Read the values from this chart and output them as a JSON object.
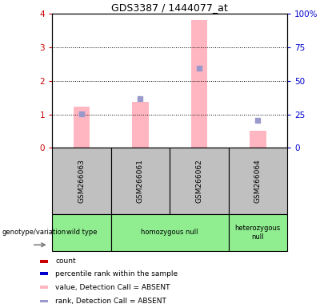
{
  "title": "GDS3387 / 1444077_at",
  "samples": [
    "GSM266063",
    "GSM266061",
    "GSM266062",
    "GSM266064"
  ],
  "pink_bar_values": [
    1.22,
    1.38,
    3.82,
    0.52
  ],
  "blue_dot_values": [
    1.02,
    1.48,
    2.38,
    0.82
  ],
  "ylim_left": [
    0,
    4
  ],
  "ylim_right": [
    0,
    100
  ],
  "yticks_left": [
    0,
    1,
    2,
    3,
    4
  ],
  "yticks_right": [
    0,
    25,
    50,
    75,
    100
  ],
  "yticklabels_right": [
    "0",
    "25",
    "50",
    "75",
    "100%"
  ],
  "left_tick_color": "#CC0000",
  "right_tick_color": "#0000CC",
  "pink_color": "#FFB6C1",
  "blue_dot_color": "#9999CC",
  "sample_area_color": "#C0C0C0",
  "genotype_color": "#90EE90",
  "genotype_label": "genotype/variation",
  "groups": [
    {
      "label": "wild type",
      "start": 0,
      "end": 1
    },
    {
      "label": "homozygous null",
      "start": 1,
      "end": 3
    },
    {
      "label": "heterozygous\nnull",
      "start": 3,
      "end": 4
    }
  ],
  "legend_colors": [
    "#CC0000",
    "#0000CC",
    "#FFB6C1",
    "#9999CC"
  ],
  "legend_labels": [
    "count",
    "percentile rank within the sample",
    "value, Detection Call = ABSENT",
    "rank, Detection Call = ABSENT"
  ]
}
